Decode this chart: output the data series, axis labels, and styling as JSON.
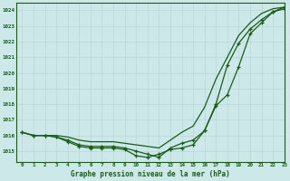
{
  "xlabel": "Graphe pression niveau de la mer (hPa)",
  "xlim": [
    -0.5,
    23
  ],
  "ylim": [
    1014.3,
    1024.5
  ],
  "yticks": [
    1015,
    1016,
    1017,
    1018,
    1019,
    1020,
    1021,
    1022,
    1023,
    1024
  ],
  "xticks": [
    0,
    1,
    2,
    3,
    4,
    5,
    6,
    7,
    8,
    9,
    10,
    11,
    12,
    13,
    14,
    15,
    16,
    17,
    18,
    19,
    20,
    21,
    22,
    23
  ],
  "bg_color": "#cce8e8",
  "line_color": "#1a5c1a",
  "grid_color": "#b8d8d8",
  "series1": [
    1016.2,
    1016.0,
    1016.0,
    1015.9,
    1015.6,
    1015.3,
    1015.2,
    1015.2,
    1015.2,
    1015.1,
    1014.7,
    1014.6,
    1014.8,
    1015.1,
    1015.2,
    1015.4,
    1016.3,
    1017.9,
    1018.6,
    1020.4,
    1022.5,
    1023.2,
    1023.9,
    1024.2
  ],
  "series2": [
    1016.2,
    1016.0,
    1016.0,
    1015.9,
    1015.7,
    1015.4,
    1015.3,
    1015.3,
    1015.3,
    1015.2,
    1015.0,
    1014.8,
    1014.6,
    1015.2,
    1015.5,
    1015.7,
    1016.3,
    1018.0,
    1020.5,
    1021.9,
    1022.8,
    1023.4,
    1023.9,
    1024.1
  ],
  "series3": [
    1016.2,
    1016.0,
    1016.0,
    1016.0,
    1015.9,
    1015.7,
    1015.6,
    1015.6,
    1015.6,
    1015.5,
    1015.4,
    1015.3,
    1015.2,
    1015.7,
    1016.2,
    1016.6,
    1017.8,
    1019.6,
    1021.0,
    1022.4,
    1023.2,
    1023.8,
    1024.1,
    1024.2
  ]
}
